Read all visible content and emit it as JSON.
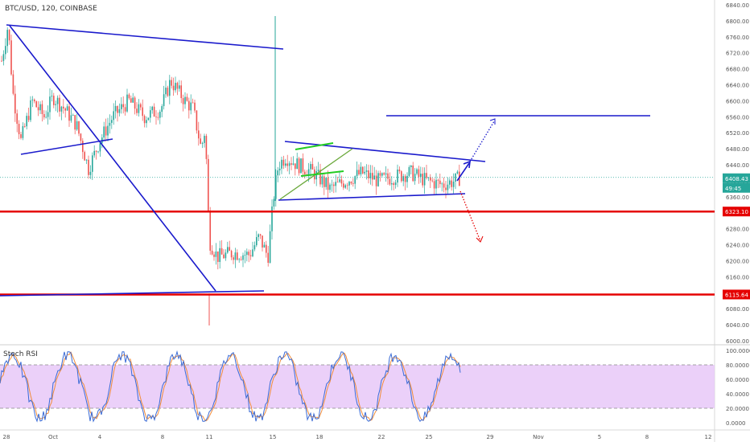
{
  "header": {
    "symbol_line": "BTC/USD, 120, COINBASE"
  },
  "rsi": {
    "title": "Stoch RSI"
  },
  "price_labels": {
    "current": "6408.43",
    "countdown": "49:45",
    "level_upper": "6323.10",
    "level_lower": "6115.64"
  },
  "colors": {
    "up": "#26a69a",
    "down": "#ef5350",
    "trendline": "#1a1acc",
    "level": "#e50000",
    "green_line": "#22cc22",
    "olive_line": "#6aa83a",
    "rsi_fill": "#e8c8f8",
    "rsi_k": "#3a6bd6",
    "rsi_d": "#f08c3a"
  },
  "chart_data": {
    "type": "candlestick",
    "title": "BTC/USD, 120, COINBASE",
    "ylim": [
      6000,
      6840
    ],
    "y_ticks": [
      "6840.00",
      "6800.00",
      "6760.00",
      "6720.00",
      "6680.00",
      "6640.00",
      "6600.00",
      "6560.00",
      "6520.00",
      "6480.00",
      "6440.00",
      "6400.00",
      "6360.00",
      "6320.00",
      "6280.00",
      "6240.00",
      "6200.00",
      "6160.00",
      "6120.00",
      "6080.00",
      "6040.00",
      "6000.00"
    ],
    "x_ticks": [
      "28",
      "Oct",
      "4",
      "8",
      "11",
      "15",
      "18",
      "22",
      "25",
      "29",
      "Nov",
      "5",
      "8",
      "12"
    ],
    "horizontal_levels": [
      6323.1,
      6115.64
    ],
    "last_price": 6408.43,
    "rsi_ticks": [
      "100.0000",
      "80.0000",
      "60.0000",
      "40.0000",
      "20.0000",
      "0.0000"
    ],
    "rsi_band": [
      20,
      80
    ]
  }
}
